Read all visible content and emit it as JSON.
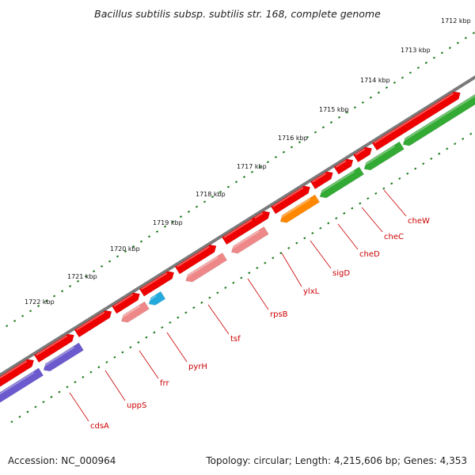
{
  "title": "Bacillus subtilis subsp. subtilis str. 168, complete genome",
  "footer": {
    "accession": "Accession: NC_000964",
    "topology": "Topology: circular; Length: 4,215,606 bp; Genes: 4,353"
  },
  "colors": {
    "backbone": "#7a7a7a",
    "ticks": "#1a7a1a",
    "cds_forward": "#ee0000",
    "cds_reverse": "#ee0000",
    "label": "#cc0000",
    "cog_dark_purple": "#6a5acd",
    "cog_pink": "#ee8888",
    "cog_cyan": "#22aadd",
    "cog_orange": "#ff8800",
    "cog_green": "#33aa33"
  },
  "tick_labels": [
    "1712 kbp",
    "1713 kbp",
    "1714 kbp",
    "1715 kbp",
    "1716 kbp",
    "1717 kbp",
    "1718 kbp",
    "1719 kbp",
    "1720 kbp",
    "1721 kbp",
    "1722 kbp"
  ],
  "genes": [
    {
      "name": "cheW",
      "cog_color": "green"
    },
    {
      "name": "cheC",
      "cog_color": "green"
    },
    {
      "name": "cheD",
      "cog_color": "green"
    },
    {
      "name": "sigD",
      "cog_color": "orange"
    },
    {
      "name": "ylxL",
      "cog_color": "none"
    },
    {
      "name": "rpsB",
      "cog_color": "pink"
    },
    {
      "name": "tsf",
      "cog_color": "pink"
    },
    {
      "name": "pyrH",
      "cog_color": "cyan"
    },
    {
      "name": "frr",
      "cog_color": "pink"
    },
    {
      "name": "uppS",
      "cog_color": "purple"
    },
    {
      "name": "cdsA",
      "cog_color": "purple"
    }
  ]
}
